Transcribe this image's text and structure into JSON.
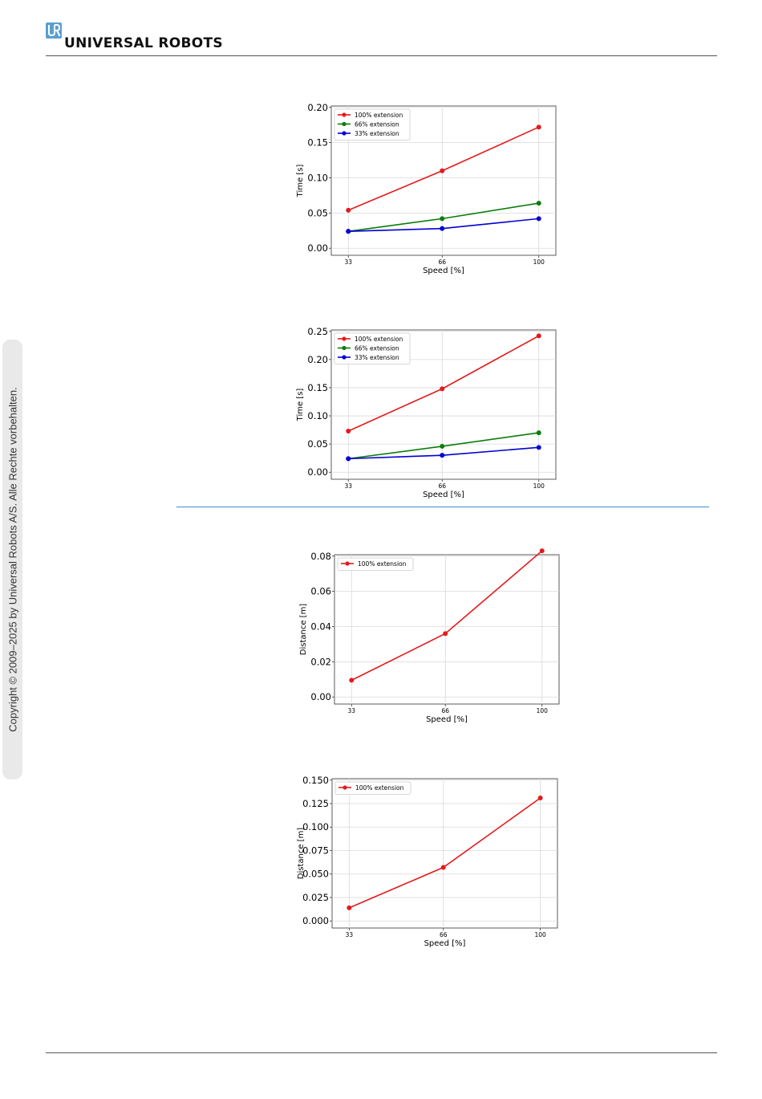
{
  "header": {
    "brand": "UNIVERSAL ROBOTS",
    "logo_icon": "ur-logo-icon",
    "logo_color": "#5b9fce"
  },
  "sidebar": {
    "copyright": "Copyright © 2009–2025 by Universal Robots A/S. Alle Rechte vorbehalten."
  },
  "colors": {
    "red": "#e41a1c",
    "green": "#0a7d0a",
    "blue": "#0000d4",
    "section_rule": "#3a8fd6"
  },
  "chart_data": [
    {
      "type": "line",
      "x": [
        33,
        66,
        100
      ],
      "xlabel": "Speed [%]",
      "ylabel": "Time [s]",
      "ylim": [
        0.0,
        0.2
      ],
      "yticks": [
        "0.00",
        "0.05",
        "0.10",
        "0.15",
        "0.20"
      ],
      "xticks": [
        "33",
        "66",
        "100"
      ],
      "grid": true,
      "legend": "top-left",
      "series": [
        {
          "name": "100% extension",
          "color": "red",
          "values": [
            0.054,
            0.11,
            0.172
          ]
        },
        {
          "name": "66% extension",
          "color": "green",
          "values": [
            0.024,
            0.042,
            0.064
          ]
        },
        {
          "name": "33% extension",
          "color": "blue",
          "values": [
            0.024,
            0.028,
            0.042
          ]
        }
      ]
    },
    {
      "type": "line",
      "x": [
        33,
        66,
        100
      ],
      "xlabel": "Speed [%]",
      "ylabel": "Time [s]",
      "ylim": [
        0.0,
        0.25
      ],
      "yticks": [
        "0.00",
        "0.05",
        "0.10",
        "0.15",
        "0.20",
        "0.25"
      ],
      "xticks": [
        "33",
        "66",
        "100"
      ],
      "grid": true,
      "legend": "top-left",
      "series": [
        {
          "name": "100% extension",
          "color": "red",
          "values": [
            0.073,
            0.148,
            0.242
          ]
        },
        {
          "name": "66% extension",
          "color": "green",
          "values": [
            0.024,
            0.046,
            0.07
          ]
        },
        {
          "name": "33% extension",
          "color": "blue",
          "values": [
            0.024,
            0.03,
            0.044
          ]
        }
      ]
    },
    {
      "type": "line",
      "x": [
        33,
        66,
        100
      ],
      "xlabel": "Speed [%]",
      "ylabel": "Distance [m]",
      "ylim": [
        0.0,
        0.08
      ],
      "yticks": [
        "0.00",
        "0.02",
        "0.04",
        "0.06",
        "0.08"
      ],
      "xticks": [
        "33",
        "66",
        "100"
      ],
      "grid": true,
      "legend": "top-left",
      "series": [
        {
          "name": "100% extension",
          "color": "red",
          "values": [
            0.0095,
            0.036,
            0.083
          ]
        }
      ]
    },
    {
      "type": "line",
      "x": [
        33,
        66,
        100
      ],
      "xlabel": "Speed [%]",
      "ylabel": "Distance [m]",
      "ylim": [
        0.0,
        0.15
      ],
      "yticks": [
        "0.000",
        "0.025",
        "0.050",
        "0.075",
        "0.100",
        "0.125",
        "0.150"
      ],
      "xticks": [
        "33",
        "66",
        "100"
      ],
      "grid": true,
      "legend": "top-left",
      "series": [
        {
          "name": "100% extension",
          "color": "red",
          "values": [
            0.014,
            0.057,
            0.131
          ]
        }
      ]
    }
  ]
}
